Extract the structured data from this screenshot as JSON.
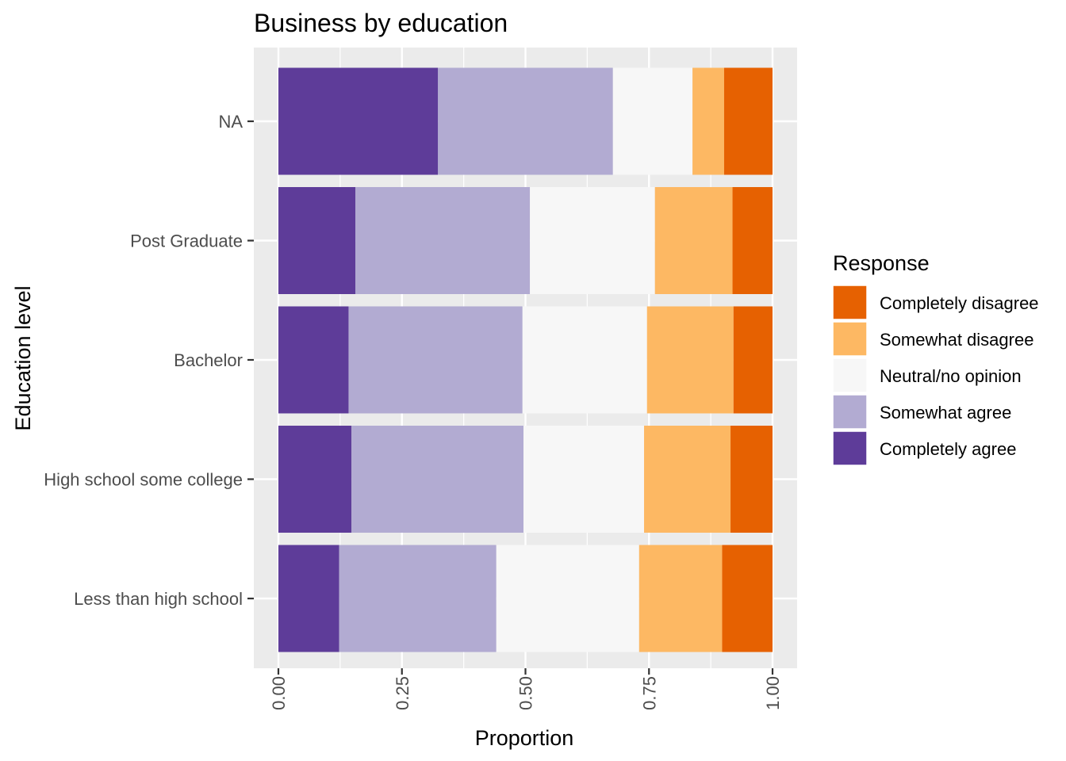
{
  "chart_data": {
    "type": "bar",
    "orientation": "horizontal",
    "stacked": true,
    "title": "Business by education",
    "xlabel": "Proportion",
    "ylabel": "Education level",
    "xlim": [
      0,
      1
    ],
    "xticks": [
      "0.00",
      "0.25",
      "0.50",
      "0.75",
      "1.00"
    ],
    "categories": [
      "NA",
      "Post Graduate",
      "Bachelor",
      "High school some college",
      "Less than high school"
    ],
    "series": [
      {
        "name": "Completely agree",
        "color": "#5e3c99",
        "values": [
          0.323,
          0.156,
          0.142,
          0.148,
          0.123
        ]
      },
      {
        "name": "Somewhat agree",
        "color": "#b2abd2",
        "values": [
          0.354,
          0.353,
          0.352,
          0.348,
          0.318
        ]
      },
      {
        "name": "Neutral/no opinion",
        "color": "#f7f7f7",
        "values": [
          0.161,
          0.253,
          0.252,
          0.244,
          0.289
        ]
      },
      {
        "name": "Somewhat disagree",
        "color": "#fdb863",
        "values": [
          0.064,
          0.157,
          0.175,
          0.175,
          0.168
        ]
      },
      {
        "name": "Completely disagree",
        "color": "#e66101",
        "values": [
          0.098,
          0.081,
          0.079,
          0.085,
          0.102
        ]
      }
    ],
    "legend": {
      "title": "Response",
      "position": "right",
      "order": [
        "Completely disagree",
        "Somewhat disagree",
        "Neutral/no opinion",
        "Somewhat agree",
        "Completely agree"
      ]
    },
    "panel_background": "#ebebeb",
    "grid": true
  }
}
